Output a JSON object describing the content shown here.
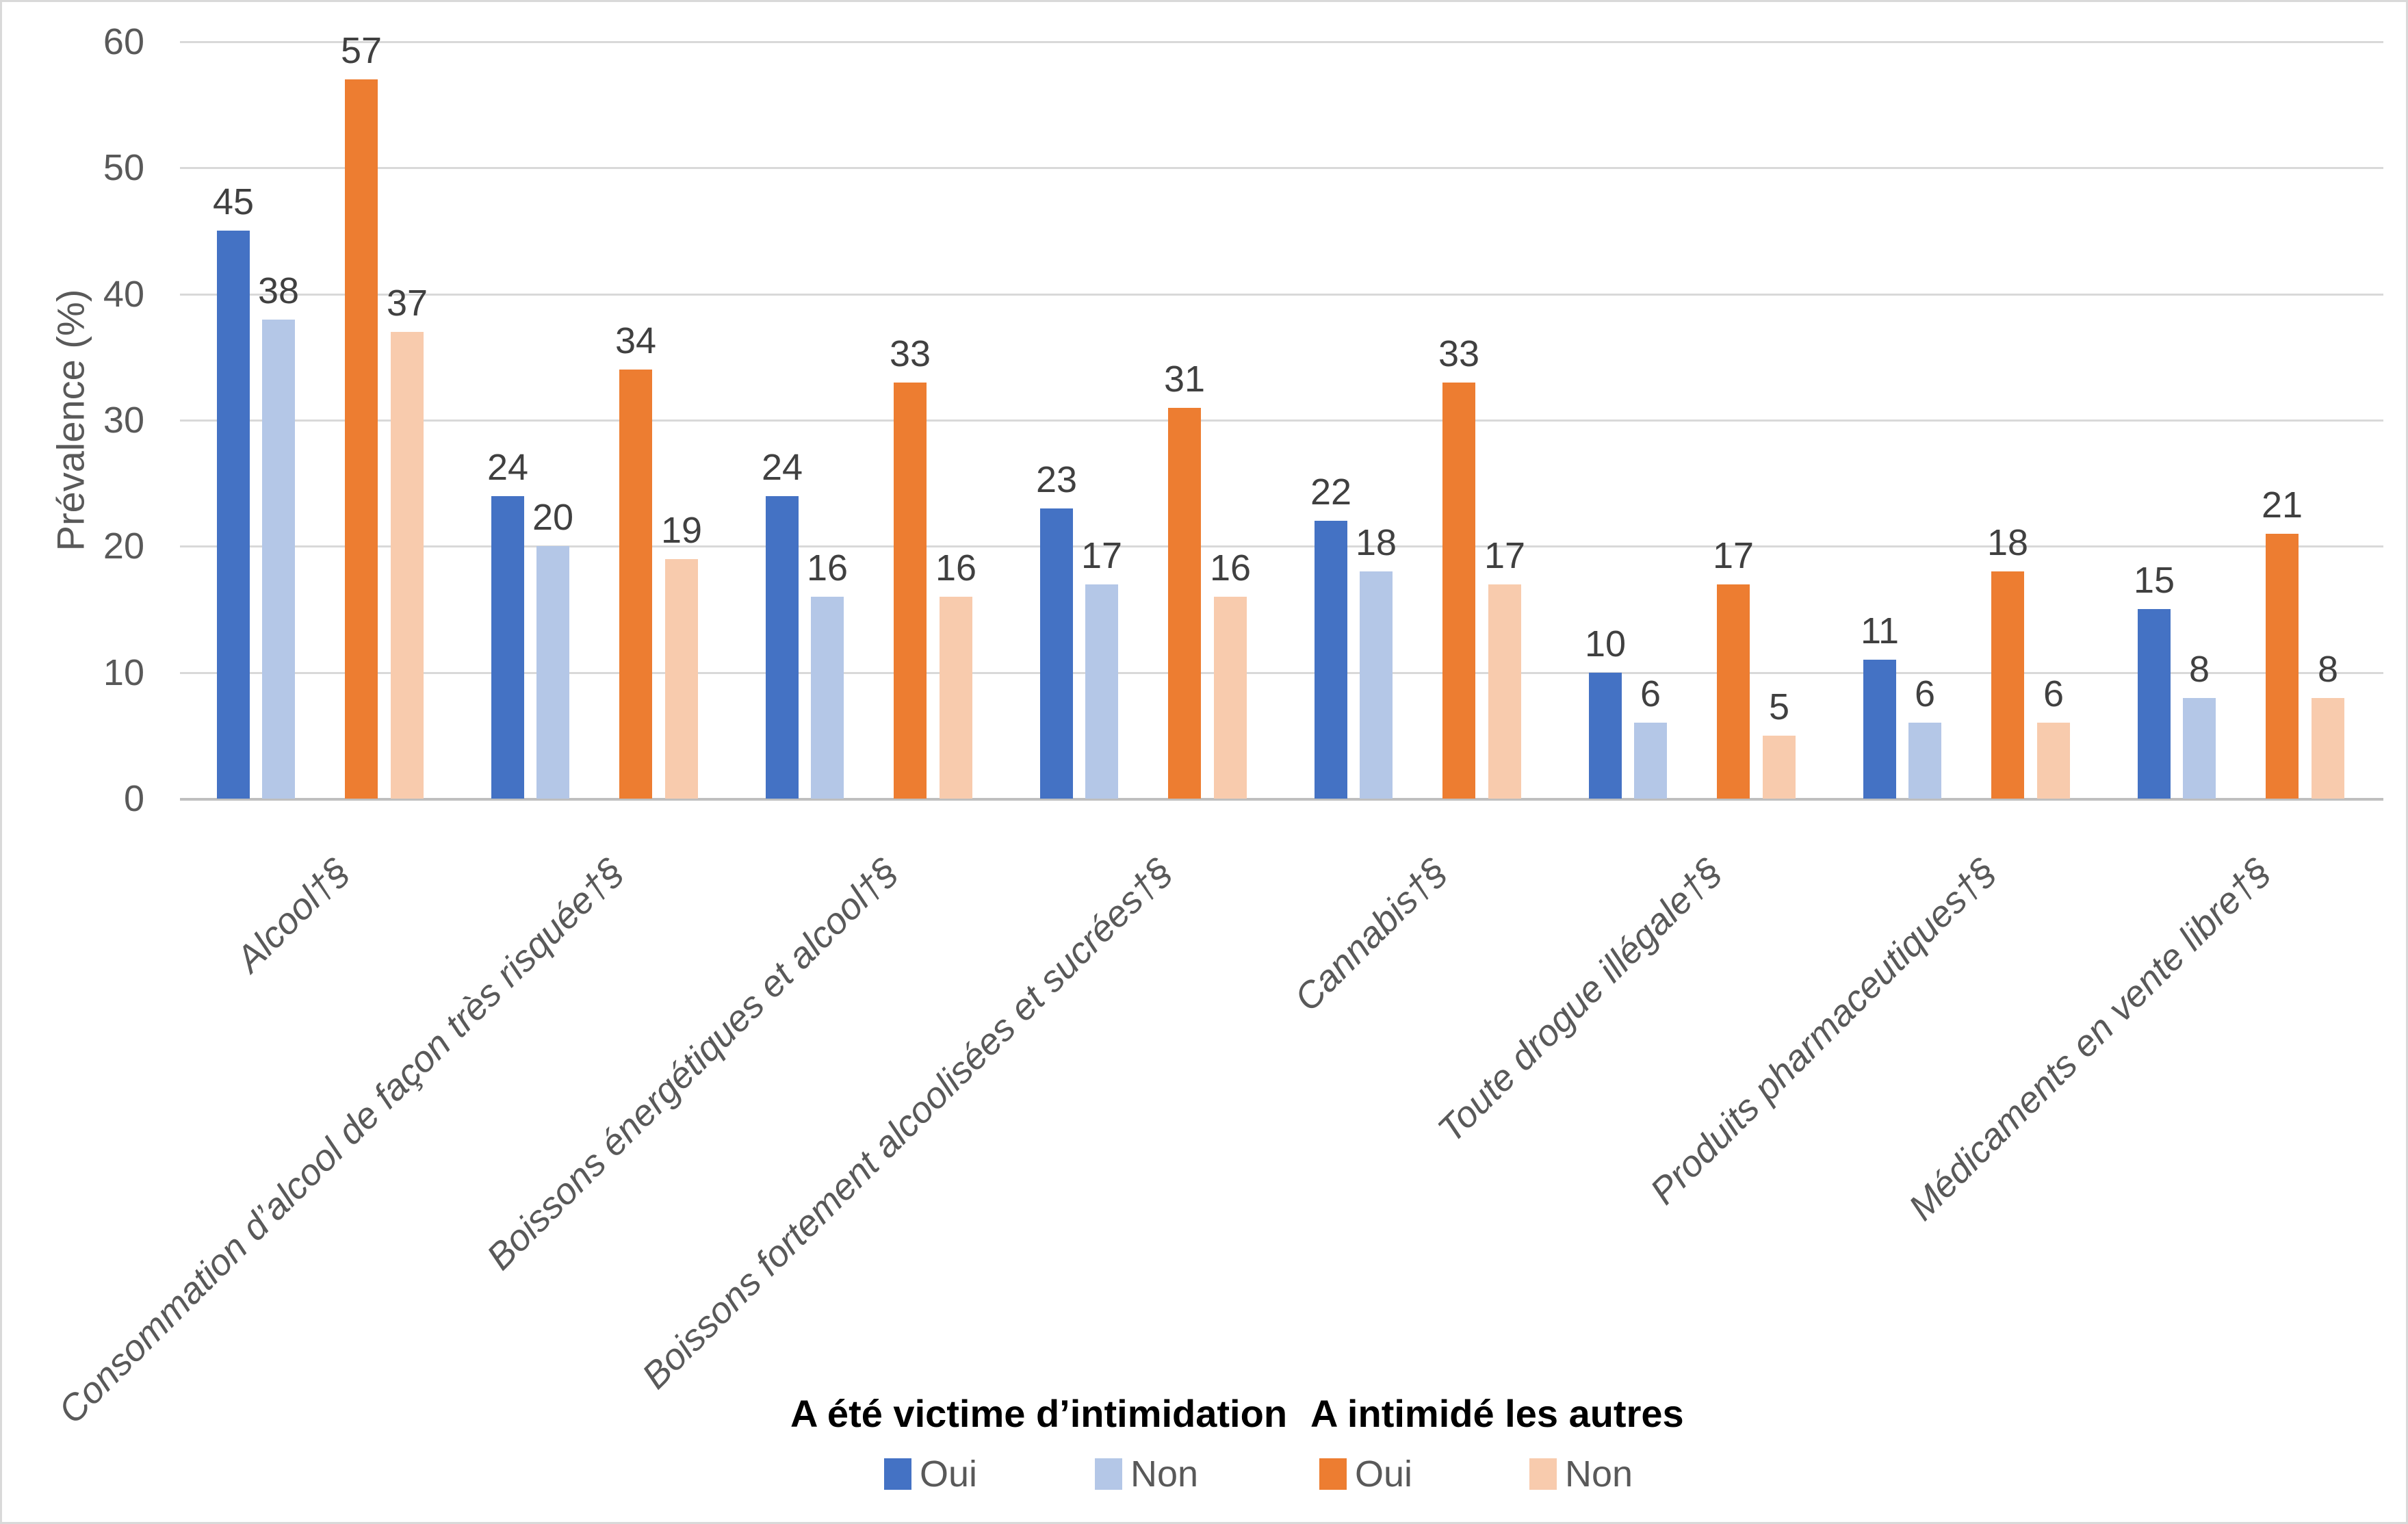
{
  "figure": {
    "y_axis_title": "Prévalence (%)",
    "legend": {
      "groups": [
        {
          "title": "A été victime d’intimidation",
          "items": [
            {
              "label": "Oui",
              "color": "#4472C4"
            },
            {
              "label": "Non",
              "color": "#B4C7E7"
            }
          ]
        },
        {
          "title": "A intimidé les autres",
          "items": [
            {
              "label": "Oui",
              "color": "#ED7D31"
            },
            {
              "label": "Non",
              "color": "#F8CBAD"
            }
          ]
        }
      ]
    }
  },
  "chart_data": {
    "type": "bar",
    "title": "",
    "xlabel": "",
    "ylabel": "Prévalence (%)",
    "ylim": [
      0,
      60
    ],
    "yticks": [
      0,
      10,
      20,
      30,
      40,
      50,
      60
    ],
    "grid": true,
    "legend_position": "bottom",
    "value_labels_shown": true,
    "categories": [
      "Alcool†§",
      "Consommation d’alcool de façon très risquée†§",
      "Boissons énergétiques et alcool†§",
      "Boissons fortement alcoolisées et sucrées†§",
      "Cannabis†§",
      "Toute drogue illégale†§",
      "Produits pharmaceutiques†§",
      "Médicaments en vente libre†§"
    ],
    "series": [
      {
        "legend_group": "A été victime d’intimidation",
        "name": "Oui",
        "color": "#4472C4",
        "values": [
          45,
          24,
          24,
          23,
          22,
          10,
          11,
          15
        ]
      },
      {
        "legend_group": "A été victime d’intimidation",
        "name": "Non",
        "color": "#B4C7E7",
        "values": [
          38,
          20,
          16,
          17,
          18,
          6,
          6,
          8
        ]
      },
      {
        "legend_group": "A intimidé les autres",
        "name": "Oui",
        "color": "#ED7D31",
        "values": [
          57,
          34,
          33,
          31,
          33,
          17,
          18,
          21
        ]
      },
      {
        "legend_group": "A intimidé les autres",
        "name": "Non",
        "color": "#F8CBAD",
        "values": [
          37,
          19,
          16,
          16,
          17,
          5,
          6,
          8
        ]
      }
    ],
    "colors": {
      "gridline": "#D9D9D9",
      "axis_line": "#BFBFBF",
      "tick_text": "#595959",
      "value_text": "#404040",
      "category_text": "#595959",
      "legend_header_text": "#000000",
      "background": "#FFFFFF"
    }
  }
}
